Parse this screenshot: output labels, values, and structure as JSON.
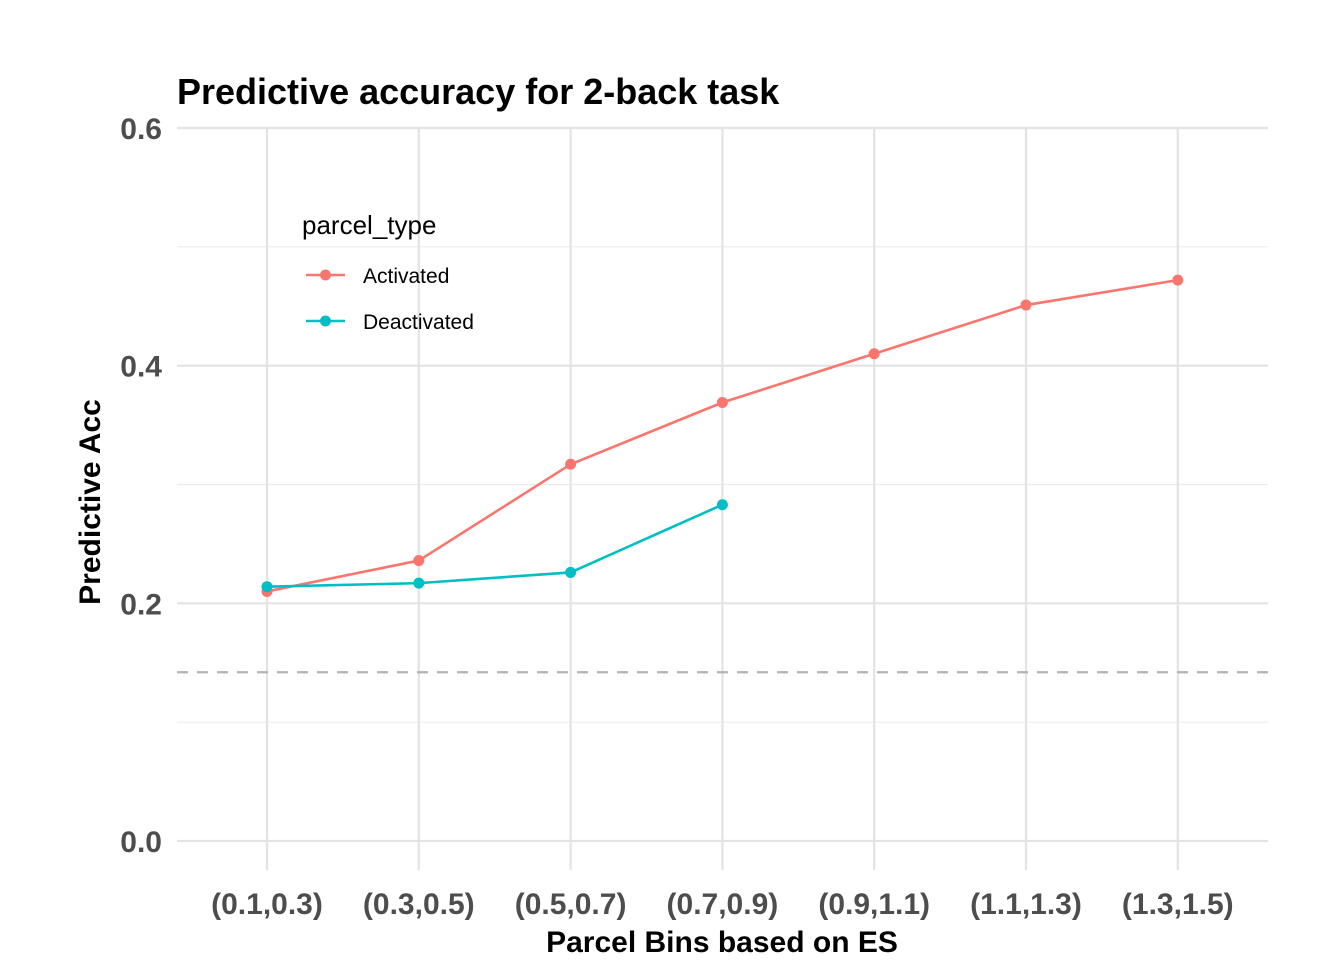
{
  "chart_data": {
    "type": "line",
    "title": "Predictive accuracy for 2-back task",
    "xlabel": "Parcel Bins based on ES",
    "ylabel": "Predictive Acc",
    "categories": [
      "(0.1,0.3)",
      "(0.3,0.5)",
      "(0.5,0.7)",
      "(0.7,0.9)",
      "(0.9,1.1)",
      "(1.1,1.3)",
      "(1.3,1.5)"
    ],
    "ylim": [
      0.0,
      0.6
    ],
    "yticks": [
      "0.0",
      "0.2",
      "0.4",
      "0.6"
    ],
    "grid": true,
    "legend": {
      "title": "parcel_type",
      "placement": "top-left inside"
    },
    "series": [
      {
        "name": "Activated",
        "color": "#F8766D",
        "values": [
          0.21,
          0.236,
          0.317,
          0.369,
          0.41,
          0.451,
          0.472
        ]
      },
      {
        "name": "Deactivated",
        "color": "#00BFC4",
        "values": [
          0.214,
          0.217,
          0.226,
          0.283,
          null,
          null,
          null
        ]
      }
    ],
    "reference_line": {
      "y": 0.142,
      "style": "dashed",
      "color": "#b3b3b3"
    }
  }
}
